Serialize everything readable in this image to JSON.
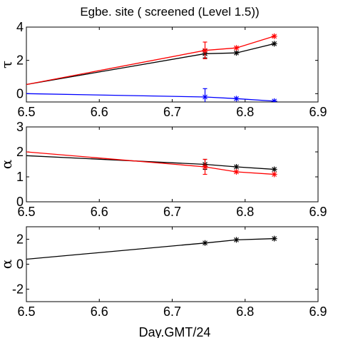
{
  "title": "Egbe. site ( screened (Level 1.5))",
  "xlabel": "Day.GMT/24",
  "chart_data": [
    {
      "type": "line",
      "ylabel": "τ",
      "xlim": [
        6.5,
        6.9
      ],
      "ylim": [
        -0.5,
        4
      ],
      "xticks": [
        "6.5",
        "6.6",
        "6.7",
        "6.8",
        "6.9"
      ],
      "yticks": [
        "0",
        "2",
        "4"
      ],
      "series": [
        {
          "color": "#000000",
          "x": [
            6.5,
            6.745,
            6.788,
            6.84
          ],
          "y": [
            0.55,
            2.4,
            2.45,
            3.0
          ],
          "marker_from": 1,
          "err_index": 1,
          "err": 0.25
        },
        {
          "color": "#ff0000",
          "x": [
            6.5,
            6.745,
            6.788,
            6.84
          ],
          "y": [
            0.55,
            2.6,
            2.75,
            3.45
          ],
          "marker_from": 1,
          "err_index": 1,
          "err": 0.5
        },
        {
          "color": "#0000ff",
          "x": [
            6.5,
            6.745,
            6.788,
            6.84
          ],
          "y": [
            0.0,
            -0.2,
            -0.3,
            -0.45
          ],
          "marker_from": 1,
          "err_index": 1,
          "err": 0.5
        }
      ]
    },
    {
      "type": "line",
      "ylabel": "α",
      "xlim": [
        6.5,
        6.9
      ],
      "ylim": [
        0,
        3
      ],
      "xticks": [
        "6.5",
        "6.6",
        "6.7",
        "6.8",
        "6.9"
      ],
      "yticks": [
        "0",
        "1",
        "2",
        "3"
      ],
      "series": [
        {
          "color": "#000000",
          "x": [
            6.5,
            6.745,
            6.788,
            6.84
          ],
          "y": [
            1.85,
            1.5,
            1.4,
            1.3
          ],
          "marker_from": 1,
          "err_index": 1,
          "err": 0.2
        },
        {
          "color": "#ff0000",
          "x": [
            6.5,
            6.745,
            6.788,
            6.84
          ],
          "y": [
            2.0,
            1.4,
            1.2,
            1.1
          ],
          "marker_from": 1,
          "err_index": 1,
          "err": 0.3
        }
      ]
    },
    {
      "type": "line",
      "ylabel": "α",
      "xlim": [
        6.5,
        6.9
      ],
      "ylim": [
        -3,
        3
      ],
      "xticks": [
        "6.5",
        "6.6",
        "6.7",
        "6.8",
        "6.9"
      ],
      "yticks": [
        "-2",
        "0",
        "2"
      ],
      "series": [
        {
          "color": "#000000",
          "x": [
            6.5,
            6.745,
            6.788,
            6.84
          ],
          "y": [
            0.4,
            1.7,
            1.95,
            2.05
          ],
          "marker_from": 1,
          "err_index": -1,
          "err": 0
        }
      ]
    }
  ]
}
